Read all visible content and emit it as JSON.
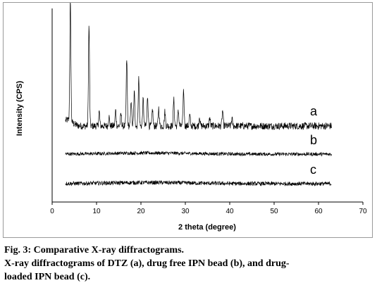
{
  "chart_data": {
    "type": "line",
    "xlabel": "2 theta (degree)",
    "ylabel": "Intensity (CPS)",
    "xlim": [
      0,
      70
    ],
    "xticks": [
      0,
      10,
      20,
      30,
      40,
      50,
      60,
      70
    ],
    "grid": false,
    "legend": "none",
    "line_color": "#000000",
    "series": [
      {
        "name": "a",
        "x_range": [
          3,
          63
        ],
        "noise_level": 0.06,
        "peaks": [
          {
            "x": 4.1,
            "height": 1.0
          },
          {
            "x": 8.3,
            "height": 0.84
          },
          {
            "x": 10.6,
            "height": 0.12
          },
          {
            "x": 12.8,
            "height": 0.08
          },
          {
            "x": 14.3,
            "height": 0.13
          },
          {
            "x": 15.5,
            "height": 0.1
          },
          {
            "x": 16.8,
            "height": 0.56
          },
          {
            "x": 17.8,
            "height": 0.22
          },
          {
            "x": 18.5,
            "height": 0.28
          },
          {
            "x": 19.5,
            "height": 0.4
          },
          {
            "x": 20.5,
            "height": 0.22
          },
          {
            "x": 21.5,
            "height": 0.25
          },
          {
            "x": 22.6,
            "height": 0.14
          },
          {
            "x": 24.0,
            "height": 0.15
          },
          {
            "x": 25.4,
            "height": 0.12
          },
          {
            "x": 27.4,
            "height": 0.22
          },
          {
            "x": 28.4,
            "height": 0.14
          },
          {
            "x": 29.6,
            "height": 0.3
          },
          {
            "x": 31.0,
            "height": 0.09
          },
          {
            "x": 33.2,
            "height": 0.08
          },
          {
            "x": 35.5,
            "height": 0.07
          },
          {
            "x": 38.4,
            "height": 0.13
          },
          {
            "x": 40.5,
            "height": 0.06
          }
        ]
      },
      {
        "name": "b",
        "x_range": [
          3,
          63
        ],
        "noise_level": 0.1,
        "peaks": []
      },
      {
        "name": "c",
        "x_range": [
          3,
          63
        ],
        "noise_level": 0.12,
        "peaks": []
      }
    ]
  },
  "caption": {
    "line1": "Fig. 3: Comparative X-ray diffractograms.",
    "line2": "X-ray diffractograms of DTZ (a), drug free IPN bead (b), and drug-",
    "line3": "loaded IPN bead (c)."
  }
}
